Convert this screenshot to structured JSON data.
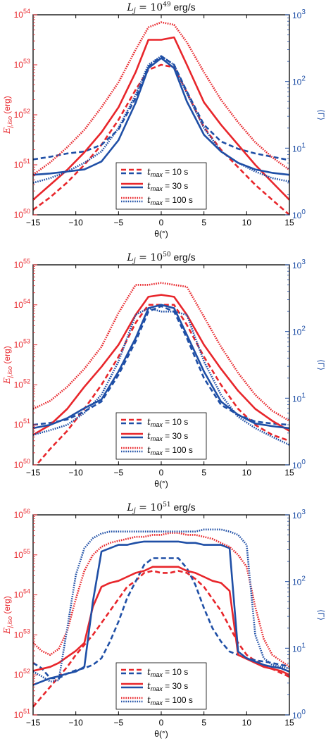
{
  "colors": {
    "red": "#e8262b",
    "blue": "#1f4fa6",
    "axis": "#000000"
  },
  "chart_data": [
    {
      "type": "line",
      "title": "L_j = 10^49 erg/s",
      "title_main": "L",
      "title_sub": "j",
      "title_mid": " = 10",
      "title_exp": "49",
      "title_unit": " erg/s",
      "xlabel": "θ(°)",
      "ylabel_left": "E_j,iso (erg)",
      "ylabel_left_main": "E",
      "ylabel_left_sub": "j,iso",
      "ylabel_left_unit": " (erg)",
      "ylabel_right": "⟨Γ⟩",
      "xlim": [
        -15,
        15
      ],
      "xticks": [
        -15,
        -10,
        -5,
        0,
        5,
        10,
        15
      ],
      "xtick_labels": [
        "−15",
        "−10",
        "−5",
        "0",
        "5",
        "10",
        "15"
      ],
      "ylim_left_log10": [
        50,
        54
      ],
      "ylim_right_log10": [
        0,
        3
      ],
      "yticks_left": [
        {
          "base": "10",
          "exp": "50",
          "pos": 50
        },
        {
          "base": "10",
          "exp": "51",
          "pos": 51
        },
        {
          "base": "10",
          "exp": "52",
          "pos": 52
        },
        {
          "base": "10",
          "exp": "53",
          "pos": 53
        },
        {
          "base": "10",
          "exp": "54",
          "pos": 54
        }
      ],
      "yticks_right": [
        {
          "base": "10",
          "exp": "0",
          "pos": 0
        },
        {
          "base": "10",
          "exp": "1",
          "pos": 1
        },
        {
          "base": "10",
          "exp": "2",
          "pos": 2
        },
        {
          "base": "10",
          "exp": "3",
          "pos": 3
        }
      ],
      "x": [
        -15,
        -13,
        -11,
        -9,
        -7,
        -5,
        -3,
        -1.5,
        0,
        1.5,
        3,
        5,
        7,
        9,
        11,
        13,
        15
      ],
      "series": [
        {
          "axis": "left",
          "color": "red",
          "dash": "dashed",
          "log10": [
            50.1,
            50.35,
            50.65,
            51.0,
            51.4,
            51.9,
            52.5,
            52.9,
            53.0,
            52.95,
            52.45,
            51.75,
            51.3,
            50.95,
            50.6,
            50.3,
            50.0
          ]
        },
        {
          "axis": "right",
          "color": "blue",
          "dash": "dashed",
          "log10": [
            0.83,
            0.87,
            0.92,
            0.95,
            1.05,
            1.28,
            1.75,
            2.22,
            2.38,
            2.25,
            1.85,
            1.35,
            1.1,
            0.99,
            0.92,
            0.87,
            0.82
          ]
        },
        {
          "axis": "left",
          "color": "red",
          "dash": "solid",
          "log10": [
            50.3,
            50.6,
            50.9,
            51.25,
            51.65,
            52.15,
            52.85,
            53.5,
            53.5,
            53.55,
            53.0,
            52.25,
            51.8,
            51.4,
            51.0,
            50.65,
            50.3
          ]
        },
        {
          "axis": "right",
          "color": "blue",
          "dash": "solid",
          "log10": [
            0.6,
            0.62,
            0.65,
            0.68,
            0.8,
            1.12,
            1.68,
            2.2,
            2.35,
            2.2,
            1.7,
            1.2,
            0.95,
            0.78,
            0.68,
            0.63,
            0.6
          ]
        },
        {
          "axis": "left",
          "color": "red",
          "dash": "dotted",
          "log10": [
            50.8,
            51.05,
            51.35,
            51.7,
            52.15,
            52.65,
            53.3,
            53.75,
            53.85,
            53.8,
            53.45,
            52.85,
            52.3,
            51.85,
            51.45,
            51.15,
            50.9
          ]
        },
        {
          "axis": "right",
          "color": "blue",
          "dash": "dotted",
          "log10": [
            0.48,
            0.55,
            0.65,
            0.78,
            0.95,
            1.3,
            1.8,
            2.25,
            2.38,
            2.25,
            1.82,
            1.3,
            0.95,
            0.78,
            0.65,
            0.55,
            0.5
          ]
        }
      ],
      "legend": {
        "placement": "lower center",
        "entries": [
          {
            "var": "t",
            "sub": "max",
            "text": " = 10 s",
            "dash": "dashed"
          },
          {
            "var": "t",
            "sub": "max",
            "text": " = 30 s",
            "dash": "solid"
          },
          {
            "var": "t",
            "sub": "max",
            "text": " = 100 s",
            "dash": "dotted"
          }
        ]
      }
    },
    {
      "type": "line",
      "title": "L_j = 10^50 erg/s",
      "title_main": "L",
      "title_sub": "j",
      "title_mid": " = 10",
      "title_exp": "50",
      "title_unit": " erg/s",
      "xlabel": "θ(°)",
      "ylabel_left": "E_j,iso (erg)",
      "ylabel_left_main": "E",
      "ylabel_left_sub": "j,iso",
      "ylabel_left_unit": " (erg)",
      "ylabel_right": "⟨Γ⟩",
      "xlim": [
        -15,
        15
      ],
      "xticks": [
        -15,
        -10,
        -5,
        0,
        5,
        10,
        15
      ],
      "xtick_labels": [
        "−15",
        "−10",
        "−5",
        "0",
        "5",
        "10",
        "15"
      ],
      "ylim_left_log10": [
        50,
        55
      ],
      "ylim_right_log10": [
        0,
        3
      ],
      "yticks_left": [
        {
          "base": "10",
          "exp": "50",
          "pos": 50
        },
        {
          "base": "10",
          "exp": "51",
          "pos": 51
        },
        {
          "base": "10",
          "exp": "52",
          "pos": 52
        },
        {
          "base": "10",
          "exp": "53",
          "pos": 53
        },
        {
          "base": "10",
          "exp": "54",
          "pos": 54
        },
        {
          "base": "10",
          "exp": "55",
          "pos": 55
        }
      ],
      "yticks_right": [
        {
          "base": "10",
          "exp": "0",
          "pos": 0
        },
        {
          "base": "10",
          "exp": "1",
          "pos": 1
        },
        {
          "base": "10",
          "exp": "2",
          "pos": 2
        },
        {
          "base": "10",
          "exp": "3",
          "pos": 3
        }
      ],
      "x": [
        -15,
        -13,
        -11,
        -9,
        -7,
        -5,
        -3,
        -1.5,
        0,
        1.5,
        3,
        5,
        7,
        9,
        11,
        13,
        15
      ],
      "series": [
        {
          "axis": "left",
          "color": "red",
          "dash": "dashed",
          "log10": [
            49.9,
            50.4,
            50.85,
            51.4,
            52.0,
            52.7,
            53.55,
            54.0,
            54.0,
            54.0,
            53.5,
            52.7,
            52.0,
            51.4,
            51.0,
            50.75,
            50.6
          ]
        },
        {
          "axis": "right",
          "color": "blue",
          "dash": "dashed",
          "log10": [
            0.6,
            0.63,
            0.68,
            0.8,
            0.95,
            1.35,
            1.85,
            2.3,
            2.38,
            2.3,
            1.9,
            1.3,
            0.9,
            0.75,
            0.65,
            0.62,
            0.6
          ]
        },
        {
          "axis": "left",
          "color": "red",
          "dash": "solid",
          "log10": [
            50.75,
            51.0,
            51.4,
            51.95,
            52.45,
            53.0,
            53.75,
            54.2,
            54.25,
            54.2,
            53.75,
            53.0,
            52.4,
            51.85,
            51.4,
            51.1,
            50.85
          ]
        },
        {
          "axis": "right",
          "color": "blue",
          "dash": "solid",
          "log10": [
            0.55,
            0.6,
            0.7,
            0.85,
            0.98,
            1.4,
            1.9,
            2.35,
            2.4,
            2.35,
            1.95,
            1.4,
            0.95,
            0.75,
            0.62,
            0.58,
            0.55
          ]
        },
        {
          "axis": "left",
          "color": "red",
          "dash": "dotted",
          "log10": [
            51.4,
            51.6,
            51.95,
            52.4,
            52.95,
            53.8,
            54.5,
            54.5,
            54.55,
            54.5,
            54.45,
            53.7,
            52.95,
            52.3,
            51.75,
            51.35,
            51.1
          ]
        },
        {
          "axis": "right",
          "color": "blue",
          "dash": "dotted",
          "log10": [
            0.45,
            0.52,
            0.6,
            0.78,
            1.05,
            1.55,
            2.25,
            2.35,
            2.3,
            2.3,
            2.25,
            1.55,
            1.05,
            0.72,
            0.55,
            0.42,
            0.3
          ]
        }
      ],
      "legend": {
        "placement": "lower center",
        "entries": [
          {
            "var": "t",
            "sub": "max",
            "text": " = 10 s",
            "dash": "dashed"
          },
          {
            "var": "t",
            "sub": "max",
            "text": " = 30 s",
            "dash": "solid"
          },
          {
            "var": "t",
            "sub": "max",
            "text": " = 100 s",
            "dash": "dotted"
          }
        ]
      }
    },
    {
      "type": "line",
      "title": "L_j = 10^51 erg/s",
      "title_main": "L",
      "title_sub": "j",
      "title_mid": " = 10",
      "title_exp": "51",
      "title_unit": " erg/s",
      "xlabel": "θ(°)",
      "ylabel_left": "E_j,iso (erg)",
      "ylabel_left_main": "E",
      "ylabel_left_sub": "j,iso",
      "ylabel_left_unit": " (erg)",
      "ylabel_right": "⟨Γ⟩",
      "xlim": [
        -15,
        15
      ],
      "xticks": [
        -15,
        -10,
        -5,
        0,
        5,
        10,
        15
      ],
      "xtick_labels": [
        "−15",
        "−10",
        "−5",
        "0",
        "5",
        "10",
        "15"
      ],
      "ylim_left_log10": [
        51,
        56
      ],
      "ylim_right_log10": [
        0,
        3
      ],
      "yticks_left": [
        {
          "base": "10",
          "exp": "51",
          "pos": 51
        },
        {
          "base": "10",
          "exp": "52",
          "pos": 52
        },
        {
          "base": "10",
          "exp": "53",
          "pos": 53
        },
        {
          "base": "10",
          "exp": "54",
          "pos": 54
        },
        {
          "base": "10",
          "exp": "55",
          "pos": 55
        },
        {
          "base": "10",
          "exp": "56",
          "pos": 56
        }
      ],
      "yticks_right": [
        {
          "base": "10",
          "exp": "0",
          "pos": 0
        },
        {
          "base": "10",
          "exp": "1",
          "pos": 1
        },
        {
          "base": "10",
          "exp": "2",
          "pos": 2
        },
        {
          "base": "10",
          "exp": "3",
          "pos": 3
        }
      ],
      "x": [
        -15,
        -14,
        -13,
        -12,
        -11,
        -10,
        -9,
        -8,
        -7,
        -6,
        -5,
        -4,
        -3,
        -2,
        -1,
        0,
        1,
        2,
        3,
        4,
        5,
        6,
        7,
        8,
        9,
        10,
        11,
        12,
        13,
        14,
        15
      ],
      "series": [
        {
          "axis": "left",
          "color": "red",
          "dash": "dashed",
          "log10": [
            51.2,
            51.45,
            51.7,
            51.95,
            52.2,
            52.5,
            52.75,
            53.0,
            53.3,
            53.6,
            53.9,
            54.2,
            54.35,
            54.55,
            54.6,
            54.55,
            54.55,
            54.6,
            54.55,
            54.4,
            54.2,
            53.9,
            53.6,
            53.2,
            52.8,
            52.5,
            52.35,
            52.25,
            52.15,
            52.05,
            51.95
          ]
        },
        {
          "axis": "right",
          "color": "blue",
          "dash": "dashed",
          "log10": [
            0.78,
            0.7,
            0.55,
            0.55,
            0.62,
            0.67,
            0.7,
            0.75,
            0.85,
            1.1,
            1.4,
            1.75,
            2.0,
            2.25,
            2.35,
            2.35,
            2.35,
            2.35,
            2.2,
            1.95,
            1.6,
            1.3,
            1.1,
            0.95,
            0.9,
            0.85,
            0.82,
            0.8,
            0.78,
            0.75,
            0.73
          ]
        },
        {
          "axis": "left",
          "color": "red",
          "dash": "solid",
          "log10": [
            52.1,
            52.15,
            52.2,
            52.3,
            52.45,
            52.6,
            52.8,
            53.7,
            54.2,
            54.3,
            54.35,
            54.45,
            54.55,
            54.6,
            54.7,
            54.7,
            54.7,
            54.7,
            54.6,
            54.55,
            54.45,
            54.35,
            54.3,
            54.1,
            52.5,
            52.4,
            52.3,
            52.2,
            52.15,
            52.1,
            52.0
          ]
        },
        {
          "axis": "right",
          "color": "blue",
          "dash": "solid",
          "log10": [
            0.45,
            0.5,
            0.55,
            0.58,
            0.62,
            0.65,
            0.72,
            1.7,
            2.45,
            2.5,
            2.55,
            2.55,
            2.58,
            2.6,
            2.6,
            2.6,
            2.6,
            2.6,
            2.58,
            2.58,
            2.55,
            2.55,
            2.55,
            2.5,
            0.95,
            0.85,
            0.8,
            0.75,
            0.72,
            0.7,
            0.65
          ]
        },
        {
          "axis": "left",
          "color": "red",
          "dash": "dotted",
          "log10": [
            52.8,
            52.6,
            52.5,
            52.65,
            53.1,
            53.9,
            54.6,
            55.0,
            55.2,
            55.3,
            55.35,
            55.4,
            55.45,
            55.45,
            55.5,
            55.5,
            55.55,
            55.55,
            55.5,
            55.5,
            55.45,
            55.4,
            55.3,
            55.2,
            55.0,
            54.7,
            53.7,
            52.9,
            52.5,
            52.35,
            52.2
          ]
        },
        {
          "axis": "right",
          "color": "blue",
          "dash": "dotted",
          "log10": [
            0.65,
            0.58,
            0.5,
            0.52,
            1.3,
            2.1,
            2.5,
            2.65,
            2.72,
            2.75,
            2.75,
            2.75,
            2.75,
            2.75,
            2.75,
            2.75,
            2.75,
            2.75,
            2.75,
            2.75,
            2.78,
            2.78,
            2.78,
            2.75,
            2.7,
            2.55,
            1.2,
            0.85,
            0.75,
            0.72,
            0.7
          ]
        }
      ],
      "legend": {
        "placement": "lower center",
        "entries": [
          {
            "var": "t",
            "sub": "max",
            "text": " = 10 s",
            "dash": "dashed"
          },
          {
            "var": "t",
            "sub": "max",
            "text": " = 30 s",
            "dash": "solid"
          },
          {
            "var": "t",
            "sub": "max",
            "text": " = 100 s",
            "dash": "dotted"
          }
        ]
      }
    }
  ]
}
